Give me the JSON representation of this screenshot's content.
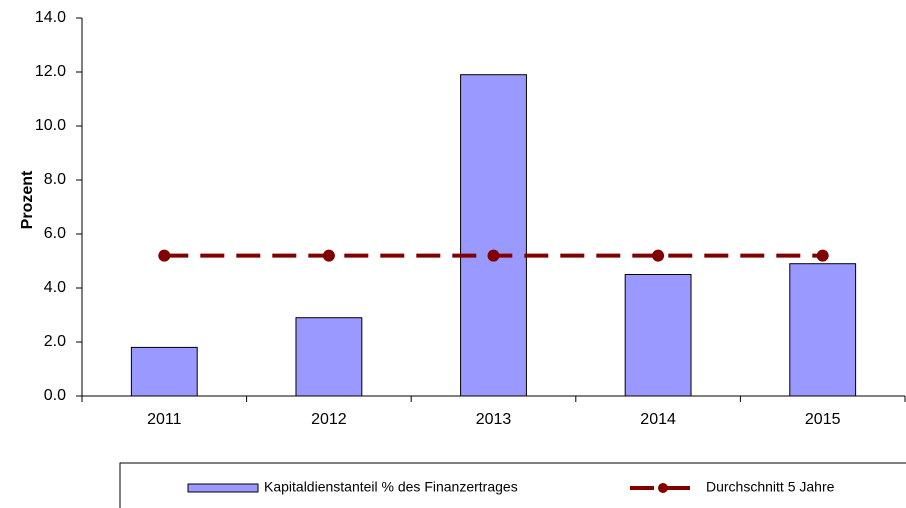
{
  "chart_data": {
    "type": "bar",
    "y_label": "Prozent",
    "categories": [
      "2011",
      "2012",
      "2013",
      "2014",
      "2015"
    ],
    "series": [
      {
        "name": "Kapitaldienstanteil % des Finanzertrages",
        "type": "bar",
        "color": "#9999ff",
        "values": [
          1.8,
          2.9,
          11.9,
          4.5,
          4.9
        ]
      },
      {
        "name": "Durchschnitt 5 Jahre",
        "type": "line",
        "color": "#800000",
        "values": [
          5.2,
          5.2,
          5.2,
          5.2,
          5.2
        ]
      }
    ],
    "ylim": [
      0,
      14
    ],
    "yticks": [
      {
        "value": 0,
        "label": "0.0"
      },
      {
        "value": 2,
        "label": "2.0"
      },
      {
        "value": 4,
        "label": "4.0"
      },
      {
        "value": 6,
        "label": "6.0"
      },
      {
        "value": 8,
        "label": "8.0"
      },
      {
        "value": 10,
        "label": "10.0"
      },
      {
        "value": 12,
        "label": "12.0"
      },
      {
        "value": 14,
        "label": "14.0"
      }
    ],
    "grid": false,
    "legend": "bottom"
  }
}
